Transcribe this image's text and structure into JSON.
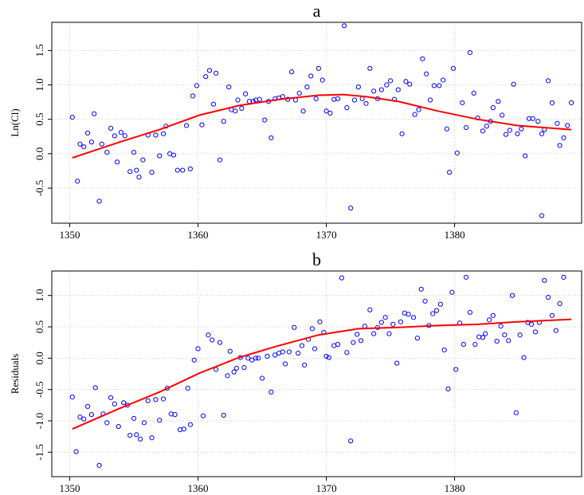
{
  "chart_data": [
    {
      "type": "scatter",
      "title": "a",
      "y_label": "Ln(Cl)",
      "grid": true,
      "xlim": [
        1348.6,
        1389.9
      ],
      "ylim": [
        -1.01,
        1.91
      ],
      "xticks": [
        1350,
        1360,
        1370,
        1380
      ],
      "yticks": [
        {
          "value": 1.5,
          "label": "1.5"
        },
        {
          "value": 1,
          "label": "1.0"
        },
        0.5,
        {
          "value": 0,
          "label": "0.0"
        },
        -0.5
      ],
      "color": "#0000ff",
      "x": [
        1350.2,
        1350.6,
        1350.8,
        1351.1,
        1351.4,
        1351.7,
        1351.9,
        1352.3,
        1352.5,
        1352.9,
        1353.2,
        1353.5,
        1353.7,
        1354.0,
        1354.3,
        1354.7,
        1355.0,
        1355.2,
        1355.4,
        1355.7,
        1356.1,
        1356.4,
        1356.7,
        1357.0,
        1357.3,
        1357.5,
        1357.8,
        1358.1,
        1358.4,
        1358.8,
        1359.1,
        1359.4,
        1359.6,
        1359.9,
        1360.3,
        1360.6,
        1360.9,
        1361.2,
        1361.4,
        1361.7,
        1362.0,
        1362.4,
        1362.6,
        1362.9,
        1363.1,
        1363.4,
        1363.7,
        1364.0,
        1364.3,
        1364.5,
        1364.8,
        1365.2,
        1365.5,
        1365.7,
        1366.0,
        1366.3,
        1366.6,
        1367.0,
        1367.3,
        1367.6,
        1367.9,
        1368.2,
        1368.5,
        1368.8,
        1369.2,
        1369.4,
        1369.7,
        1370.0,
        1370.3,
        1370.6,
        1370.9,
        1371.4,
        1371.6,
        1371.9,
        1372.2,
        1372.5,
        1372.8,
        1373.1,
        1373.4,
        1373.7,
        1374.0,
        1374.3,
        1374.7,
        1375.0,
        1375.3,
        1375.6,
        1375.9,
        1376.2,
        1376.5,
        1376.9,
        1377.2,
        1377.5,
        1377.8,
        1378.1,
        1378.4,
        1378.8,
        1379.1,
        1379.4,
        1379.6,
        1379.9,
        1380.2,
        1380.6,
        1380.9,
        1381.2,
        1381.5,
        1381.8,
        1382.2,
        1382.5,
        1382.8,
        1383.0,
        1383.4,
        1383.7,
        1384.0,
        1384.3,
        1384.6,
        1384.9,
        1385.2,
        1385.5,
        1385.8,
        1386.1,
        1386.5,
        1386.8,
        1386.8,
        1387.0,
        1387.3,
        1387.6,
        1388.0,
        1388.2,
        1388.5,
        1388.8,
        1389.1
      ],
      "values": [
        0.53,
        -0.4,
        0.14,
        0.1,
        0.3,
        0.17,
        0.58,
        -0.69,
        0.14,
        0.02,
        0.37,
        0.26,
        -0.12,
        0.31,
        0.26,
        -0.26,
        0.02,
        -0.24,
        -0.34,
        -0.09,
        0.27,
        -0.27,
        0.27,
        -0.03,
        0.29,
        0.4,
        0,
        -0.02,
        -0.24,
        -0.24,
        0.41,
        -0.22,
        0.84,
        0.99,
        0.42,
        1.12,
        1.21,
        0.72,
        1.17,
        -0.09,
        0.47,
        0.97,
        0.64,
        0.62,
        0.78,
        0.66,
        0.87,
        0.76,
        0.76,
        0.78,
        0.79,
        0.49,
        0.76,
        0.23,
        0.8,
        0.81,
        0.83,
        0.79,
        1.19,
        0.78,
        0.88,
        0.62,
        0.97,
        1.13,
        0.8,
        1.24,
        1.07,
        0.62,
        0.59,
        0.79,
        0.8,
        1.86,
        0.67,
        -0.79,
        0.78,
        0.97,
        0.8,
        0.73,
        1.24,
        0.91,
        0.8,
        0.93,
        1.0,
        1.06,
        0.79,
        0.93,
        0.29,
        1.05,
        1.01,
        0.57,
        0.64,
        1.38,
        1.16,
        0.78,
        0.99,
        0.99,
        1.07,
        0.36,
        -0.27,
        1.24,
        0.01,
        0.74,
        0.38,
        1.47,
        0.88,
        0.52,
        0.33,
        0.4,
        0.47,
        0.67,
        0.76,
        0.56,
        0.28,
        0.34,
        1.01,
        0.29,
        0.36,
        -0.03,
        0.51,
        0.51,
        0.47,
        0.29,
        -0.9,
        0.35,
        1.06,
        0.74,
        0.44,
        0.12,
        0.23,
        0.41,
        0.74
      ],
      "smooth": {
        "color": "#ff0000",
        "x": [
          1350.2,
          1353.9,
          1357.0,
          1360.1,
          1363.2,
          1366.3,
          1369.4,
          1371.3,
          1373.1,
          1375.6,
          1378.7,
          1381.8,
          1384.9,
          1389.1
        ],
        "values": [
          -0.06,
          0.17,
          0.35,
          0.56,
          0.7,
          0.79,
          0.85,
          0.86,
          0.83,
          0.76,
          0.62,
          0.5,
          0.41,
          0.35
        ]
      }
    },
    {
      "type": "scatter",
      "title": "b",
      "y_label": "Residuals",
      "grid": true,
      "xlim": [
        1348.6,
        1389.9
      ],
      "ylim": [
        -1.89,
        1.39
      ],
      "xticks": [
        1350,
        1360,
        1370,
        1380
      ],
      "yticks": [
        {
          "value": 1,
          "label": "1.0"
        },
        0.5,
        {
          "value": 0,
          "label": "0.0"
        },
        -0.5,
        {
          "value": -1,
          "label": "-1.0"
        },
        -1.5
      ],
      "color": "#0000ff",
      "x": [
        1350.2,
        1350.5,
        1350.8,
        1351.1,
        1351.4,
        1351.7,
        1352.0,
        1352.3,
        1352.6,
        1352.9,
        1353.2,
        1353.5,
        1353.8,
        1354.2,
        1354.5,
        1354.7,
        1355.0,
        1355.2,
        1355.5,
        1355.8,
        1356.1,
        1356.4,
        1356.7,
        1357.0,
        1357.3,
        1357.6,
        1357.9,
        1358.2,
        1358.6,
        1358.9,
        1359.2,
        1359.4,
        1359.7,
        1360.0,
        1360.4,
        1360.8,
        1361.1,
        1361.4,
        1361.7,
        1362.0,
        1362.3,
        1362.5,
        1362.8,
        1363.0,
        1363.3,
        1363.6,
        1363.9,
        1364.2,
        1364.5,
        1364.7,
        1365.0,
        1365.4,
        1365.7,
        1366.0,
        1366.3,
        1366.6,
        1366.8,
        1367.1,
        1367.5,
        1367.8,
        1368.1,
        1368.3,
        1368.6,
        1368.9,
        1369.1,
        1369.5,
        1369.8,
        1370.0,
        1370.2,
        1370.6,
        1370.9,
        1371.2,
        1371.6,
        1371.9,
        1372.1,
        1372.4,
        1372.7,
        1373.0,
        1373.4,
        1373.7,
        1374.0,
        1374.3,
        1374.6,
        1374.9,
        1375.2,
        1375.5,
        1375.8,
        1376.1,
        1376.4,
        1376.8,
        1377.1,
        1377.4,
        1377.7,
        1378.0,
        1378.3,
        1378.6,
        1378.9,
        1379.2,
        1379.5,
        1379.8,
        1380.1,
        1380.4,
        1380.7,
        1380.9,
        1381.2,
        1381.6,
        1381.9,
        1382.2,
        1382.4,
        1382.7,
        1383.0,
        1383.3,
        1383.6,
        1383.9,
        1384.2,
        1384.5,
        1384.8,
        1385.1,
        1385.4,
        1385.7,
        1386.0,
        1386.3,
        1386.6,
        1387.0,
        1387.3,
        1387.6,
        1387.9,
        1388.2,
        1388.5
      ],
      "values": [
        -0.62,
        -1.49,
        -0.94,
        -0.97,
        -0.77,
        -0.9,
        -0.47,
        -1.71,
        -0.89,
        -1.03,
        -0.63,
        -0.73,
        -1.09,
        -0.71,
        -0.75,
        -1.23,
        -0.96,
        -1.22,
        -1.29,
        -1.03,
        -0.68,
        -1.27,
        -0.66,
        -0.99,
        -0.65,
        -0.48,
        -0.89,
        -0.9,
        -1.14,
        -1.13,
        -0.48,
        -1.06,
        -0.03,
        0.15,
        -0.92,
        0.37,
        0.29,
        -0.18,
        0.25,
        -0.91,
        -0.28,
        0.11,
        -0.22,
        -0.16,
        0.01,
        -0.15,
        0,
        -0.03,
        0,
        0,
        -0.32,
        0.03,
        -0.54,
        0.05,
        0.08,
        0.1,
        -0.09,
        0.1,
        0.49,
        0.08,
        0.2,
        -0.11,
        0.3,
        0.47,
        0.15,
        0.58,
        0.41,
        0.03,
        0.01,
        0.2,
        0.22,
        1.28,
        0.09,
        -1.32,
        0.25,
        0.38,
        0.28,
        0.51,
        0.77,
        0.39,
        0.49,
        0.57,
        0.65,
        0.39,
        0.54,
        -0.08,
        0.58,
        0.72,
        0.7,
        0.65,
        0.32,
        1.1,
        0.91,
        0.52,
        0.71,
        0.76,
        0.86,
        0.13,
        -0.49,
        1.05,
        -0.18,
        0.56,
        0.22,
        1.29,
        0.73,
        0.22,
        0.34,
        0.33,
        0.39,
        0.61,
        0.68,
        0.27,
        0.51,
        0.37,
        0.28,
        1.0,
        -0.87,
        0.37,
        0.01,
        0.57,
        0.54,
        0.42,
        0.57,
        1.24,
        0.97,
        0.68,
        0.44,
        0.87,
        1.29
      ],
      "smooth": {
        "color": "#ff0000",
        "x": [
          1350.2,
          1353.9,
          1357.0,
          1360.1,
          1363.2,
          1366.3,
          1369.4,
          1372.5,
          1375.6,
          1378.7,
          1381.8,
          1384.9,
          1389.1
        ],
        "values": [
          -1.13,
          -0.8,
          -0.54,
          -0.24,
          0.01,
          0.2,
          0.37,
          0.47,
          0.49,
          0.52,
          0.54,
          0.58,
          0.62
        ]
      }
    }
  ]
}
